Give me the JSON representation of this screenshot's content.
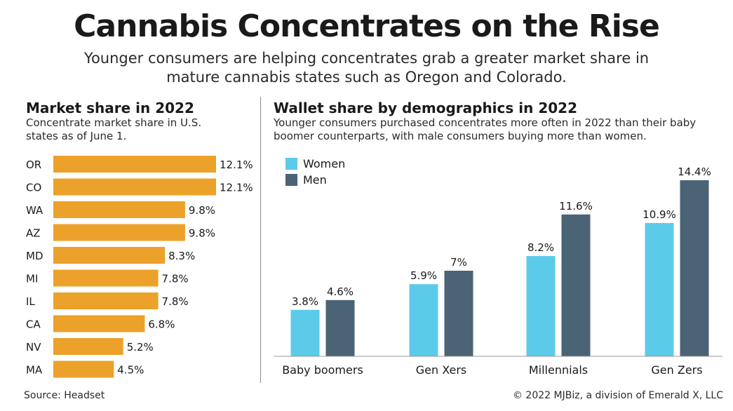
{
  "header": {
    "title": "Cannabis Concentrates on the Rise",
    "subtitle": "Younger consumers are helping concentrates grab a greater market share in mature cannabis states such as Oregon and Colorado."
  },
  "left_panel": {
    "title": "Market share in 2022",
    "note": "Concentrate market share in U.S. states as of June 1."
  },
  "right_panel": {
    "title": "Wallet share by demographics in 2022",
    "note": "Younger consumers purchased concentrates more often in 2022 than their baby boomer counterparts, with male consumers buying more than women."
  },
  "footer": {
    "source": "Source: Headset",
    "copyright": "© 2022 MJBiz, a division of Emerald X, LLC"
  },
  "colors": {
    "orange": "#ECA12A",
    "women": "#5CCBEA",
    "men": "#4A6375"
  },
  "chart_data": [
    {
      "type": "bar",
      "orientation": "horizontal",
      "title": "Market share in 2022",
      "categories": [
        "OR",
        "CO",
        "WA",
        "AZ",
        "MD",
        "MI",
        "IL",
        "CA",
        "NV",
        "MA"
      ],
      "values": [
        12.1,
        12.1,
        9.8,
        9.8,
        8.3,
        7.8,
        7.8,
        6.8,
        5.2,
        4.5
      ],
      "labels": [
        "12.1%",
        "12.1%",
        "9.8%",
        "9.8%",
        "8.3%",
        "7.8%",
        "7.8%",
        "6.8%",
        "5.2%",
        "4.5%"
      ],
      "xlim": [
        0,
        12.1
      ],
      "grid": false
    },
    {
      "type": "bar",
      "orientation": "vertical",
      "title": "Wallet share by demographics in 2022",
      "categories": [
        "Baby boomers",
        "Gen Xers",
        "Millennials",
        "Gen Zers"
      ],
      "series": [
        {
          "name": "Women",
          "values": [
            3.8,
            5.9,
            8.2,
            10.9
          ],
          "labels": [
            "3.8%",
            "5.9%",
            "8.2%",
            "10.9%"
          ]
        },
        {
          "name": "Men",
          "values": [
            4.6,
            7.0,
            11.6,
            14.4
          ],
          "labels": [
            "4.6%",
            "7%",
            "11.6%",
            "14.4%"
          ]
        }
      ],
      "ylim": [
        0,
        14.4
      ],
      "legend": "top-left",
      "grid": false
    }
  ]
}
